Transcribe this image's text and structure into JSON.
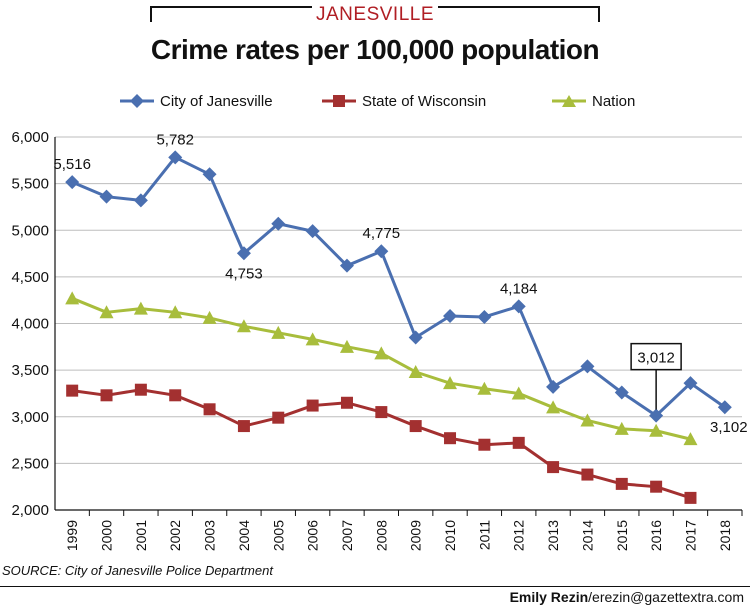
{
  "header": {
    "kicker": "JANESVILLE",
    "title": "Crime rates per 100,000 population"
  },
  "footer": {
    "source": "SOURCE: City of Janesville Police Department",
    "credit_name": "Emily Rezin",
    "credit_email": "/erezin@gazettextra.com"
  },
  "colors": {
    "janesville": "#4a6fb0",
    "wisconsin": "#a33030",
    "nation": "#a8bd3c",
    "grid": "#bdbdbd"
  },
  "chart_data": {
    "type": "line",
    "title": "Crime rates per 100,000 population",
    "xlabel": "",
    "ylabel": "",
    "ylim": [
      2000,
      6000
    ],
    "yticks": [
      2000,
      2500,
      3000,
      3500,
      4000,
      4500,
      5000,
      5500,
      6000
    ],
    "ytick_labels": [
      "2,000",
      "2,500",
      "3,000",
      "3,500",
      "4,000",
      "4,500",
      "5,000",
      "5,500",
      "6,000"
    ],
    "grid": "horizontal",
    "legend_position": "top",
    "categories": [
      "1999",
      "2000",
      "2001",
      "2002",
      "2003",
      "2004",
      "2005",
      "2006",
      "2007",
      "2008",
      "2009",
      "2010",
      "2011",
      "2012",
      "2013",
      "2014",
      "2015",
      "2016",
      "2017",
      "2018"
    ],
    "series": [
      {
        "name": "City of Janesville",
        "marker": "diamond",
        "values": [
          5516,
          5360,
          5320,
          5782,
          5600,
          4753,
          5070,
          4990,
          4620,
          4775,
          3850,
          4080,
          4070,
          4184,
          3320,
          3540,
          3260,
          3012,
          3360,
          3102
        ]
      },
      {
        "name": "State of Wisconsin",
        "marker": "square",
        "values": [
          3280,
          3230,
          3290,
          3230,
          3080,
          2900,
          2990,
          3120,
          3150,
          3050,
          2900,
          2770,
          2700,
          2720,
          2460,
          2380,
          2280,
          2250,
          2130,
          null
        ]
      },
      {
        "name": "Nation",
        "marker": "triangle",
        "values": [
          4270,
          4120,
          4160,
          4120,
          4060,
          3970,
          3900,
          3830,
          3750,
          3680,
          3480,
          3360,
          3300,
          3250,
          3100,
          2960,
          2870,
          2850,
          2760,
          null
        ]
      }
    ],
    "annotations": [
      {
        "series": 0,
        "index": 0,
        "text": "5,516",
        "pos": "above"
      },
      {
        "series": 0,
        "index": 3,
        "text": "5,782",
        "pos": "above"
      },
      {
        "series": 0,
        "index": 5,
        "text": "4,753",
        "pos": "below"
      },
      {
        "series": 0,
        "index": 9,
        "text": "4,775",
        "pos": "above"
      },
      {
        "series": 0,
        "index": 13,
        "text": "4,184",
        "pos": "above"
      },
      {
        "series": 0,
        "index": 17,
        "text": "3,012",
        "pos": "boxed"
      },
      {
        "series": 0,
        "index": 19,
        "text": "3,102",
        "pos": "below"
      }
    ]
  }
}
